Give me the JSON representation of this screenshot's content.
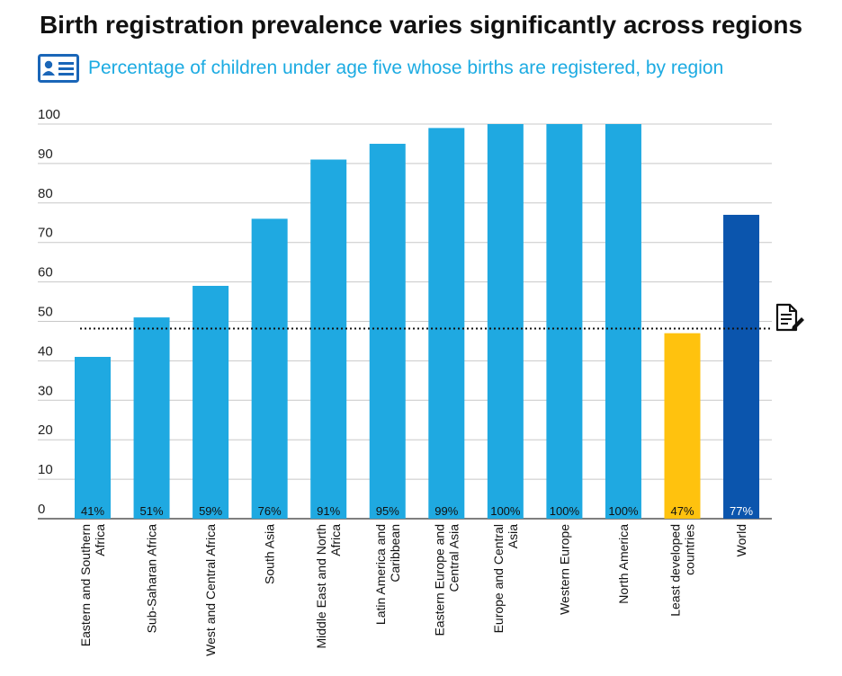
{
  "title": "Birth registration prevalence varies significantly across regions",
  "subtitle": "Percentage of children under age five whose births are registered, by region",
  "subtitle_icon": "id-card-icon",
  "reference_icon": "document-pen-icon",
  "colors": {
    "bar": "#1fa9e1",
    "least_developed": "#ffc20e",
    "world": "#0b55ad",
    "grid": "#c8c8c8",
    "axis": "#555555",
    "reference_line": "#111111"
  },
  "chart_data": {
    "type": "bar",
    "title": "Birth registration prevalence varies significantly across regions",
    "subtitle": "Percentage of children under age five whose births are registered, by region",
    "xlabel": "",
    "ylabel": "",
    "ylim": [
      0,
      100
    ],
    "yticks": [
      "0",
      "10",
      "20",
      "30",
      "40",
      "50",
      "60",
      "70",
      "80",
      "90",
      "100"
    ],
    "grid": true,
    "reference_line": 50,
    "categories": [
      [
        "Eastern and Southern",
        "Africa"
      ],
      [
        "Sub-Saharan Africa"
      ],
      [
        "West and Central Africa"
      ],
      [
        "South Asia"
      ],
      [
        "Middle East and North",
        "Africa"
      ],
      [
        "Latin America and",
        "Caribbean"
      ],
      [
        "Eastern Europe and",
        "Central Asia"
      ],
      [
        "Europe and Central",
        "Asia"
      ],
      [
        "Western Europe"
      ],
      [
        "North America"
      ],
      [
        "Least developed",
        "countries"
      ],
      [
        "World"
      ]
    ],
    "values": [
      41,
      51,
      59,
      76,
      91,
      95,
      99,
      100,
      100,
      100,
      47,
      77
    ],
    "labels": [
      "41%",
      "51%",
      "59%",
      "76%",
      "91%",
      "95%",
      "99%",
      "100%",
      "100%",
      "100%",
      "47%",
      "77%"
    ],
    "bar_colors": [
      "bar",
      "bar",
      "bar",
      "bar",
      "bar",
      "bar",
      "bar",
      "bar",
      "bar",
      "bar",
      "least_developed",
      "world"
    ]
  }
}
